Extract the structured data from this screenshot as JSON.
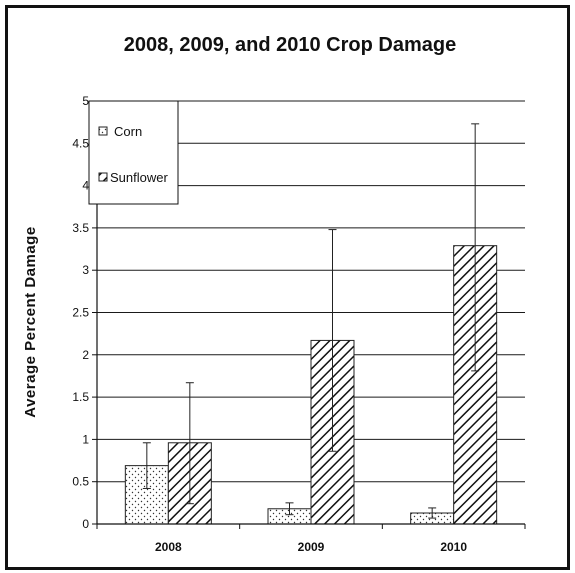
{
  "chart_data": {
    "type": "bar",
    "title": "2008, 2009, and 2010 Crop Damage",
    "xlabel": "",
    "ylabel": "Average Percent Damage",
    "categories": [
      "2008",
      "2009",
      "2010"
    ],
    "ylim": [
      0,
      5
    ],
    "yticks": [
      "0",
      "0.5",
      "1",
      "1.5",
      "2",
      "2.5",
      "3",
      "3.5",
      "4",
      "4.5",
      "5"
    ],
    "grid": true,
    "legend_position": "top-left",
    "series": [
      {
        "name": "Corn",
        "legend_label": "Corn",
        "pattern": "dotted",
        "values": [
          0.69,
          0.18,
          0.13
        ],
        "error_low": [
          0.42,
          0.11,
          0.07
        ],
        "error_high": [
          0.96,
          0.25,
          0.19
        ]
      },
      {
        "name": "Sunflower",
        "legend_label": "Sunflower",
        "pattern": "diagonal-hatch",
        "values": [
          0.96,
          2.17,
          3.29
        ],
        "error_low": [
          0.24,
          0.86,
          1.81
        ],
        "error_high": [
          1.67,
          3.48,
          4.73
        ]
      }
    ]
  },
  "colors": {
    "frame": "#111111",
    "gridline": "#1a1a1a",
    "bar_outline": "#222222",
    "background": "#ffffff"
  }
}
